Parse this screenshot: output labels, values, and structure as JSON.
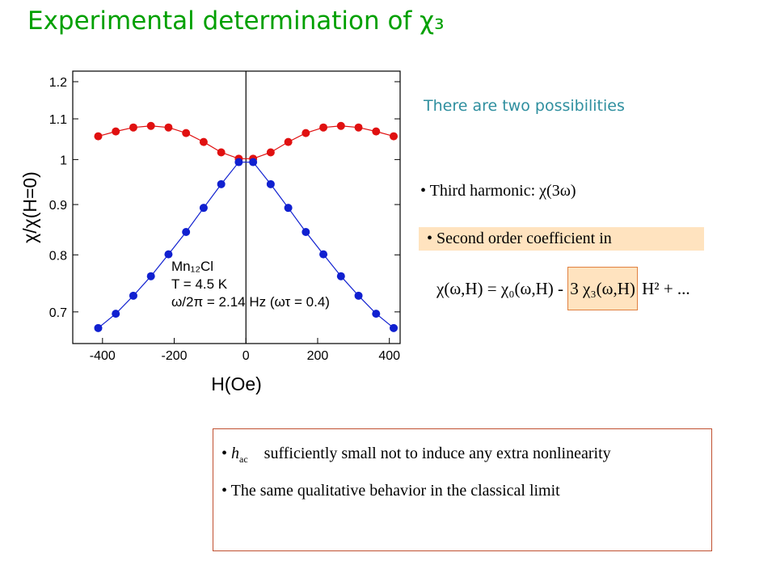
{
  "title": "Experimental determination of χ₃",
  "possibilities": {
    "heading": "There are two possibilities",
    "items": [
      "Third harmonic: χ(3ω)",
      "Second order coefficient in"
    ]
  },
  "equation": {
    "lhs": "χ(ω,H) = χ₀(ω,H) -",
    "boxed": "3 χ₃(ω,H)",
    "rhs": "H² + ..."
  },
  "notes": [
    {
      "symbol": "h",
      "subscript": "ac",
      "text": "sufficiently small not to induce any extra nonlinearity"
    },
    {
      "text": "The same qualitative behavior in the classical limit"
    }
  ],
  "chart_data": {
    "type": "line",
    "x_label": "H(Oe)",
    "y_label": "χ/χ(H=0)",
    "annotations": [
      "Mn₁₂Cl",
      "T = 4.5 K",
      "ω/2π = 2.14 Hz (ωτ = 0.4)"
    ],
    "x": [
      -412,
      -363,
      -314,
      -265,
      -216,
      -167,
      -118,
      -69,
      -20,
      20,
      69,
      118,
      167,
      216,
      265,
      314,
      363,
      412
    ],
    "series": [
      {
        "color": "#e01010",
        "values": [
          1.056,
          1.068,
          1.078,
          1.082,
          1.078,
          1.064,
          1.042,
          1.017,
          1.002,
          1.002,
          1.017,
          1.042,
          1.064,
          1.078,
          1.082,
          1.078,
          1.068,
          1.056
        ]
      },
      {
        "color": "#1020d0",
        "values": [
          0.674,
          0.697,
          0.727,
          0.761,
          0.801,
          0.844,
          0.893,
          0.944,
          0.994,
          0.994,
          0.944,
          0.893,
          0.844,
          0.801,
          0.761,
          0.727,
          0.697,
          0.674
        ]
      }
    ],
    "xlim": [
      -483,
      430
    ],
    "ylim": [
      0.65,
      1.23
    ],
    "log_y": true,
    "xticks": [
      -400,
      -200,
      0,
      200,
      400
    ],
    "yticks": [
      1.2,
      1.1,
      1,
      0.9,
      0.8,
      0.7
    ]
  }
}
